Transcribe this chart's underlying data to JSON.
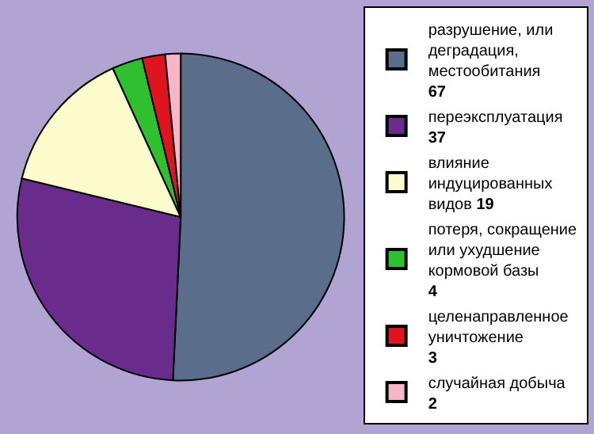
{
  "chart_data": {
    "type": "pie",
    "categories": [
      "разрушение, или деградация, местообитания",
      "переэксплуатация",
      "влияние индуцированных видов",
      "потеря, сокращение или ухудшение кормовой базы",
      "целенаправленное уничтожение",
      "случайная добыча"
    ],
    "values": [
      67,
      37,
      19,
      4,
      3,
      2
    ],
    "colors": [
      "#5a6e8c",
      "#6a2c8c",
      "#fdfccc",
      "#2fc02f",
      "#e0141e",
      "#f7b6c8"
    ],
    "data_labels": true,
    "legend": "right"
  }
}
